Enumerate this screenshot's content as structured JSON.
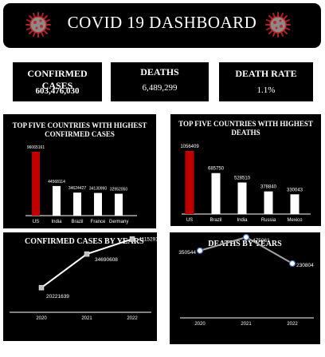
{
  "header": {
    "title": "COVID 19 DASHBOARD",
    "left_icon": "virus-icon",
    "right_icon": "virus-icon"
  },
  "kpis": {
    "confirmed": {
      "label": "CONFIRMED CASES",
      "value": "603,476,030"
    },
    "deaths": {
      "label": "DEATHS",
      "value": "6,489,299"
    },
    "death_rate": {
      "label": "DEATH RATE",
      "value": "1.1%"
    }
  },
  "colors": {
    "highlight_bar": "#c00000",
    "bar": "#ffffff",
    "line_confirmed": "#ffffff",
    "line_deaths": "#a6a6a6",
    "background": "#000000"
  },
  "chart_data": [
    {
      "type": "bar",
      "title": "TOP FIVE COUNTRIES WITH  HIGHEST CONFIRMED CASES",
      "categories": [
        "US",
        "India",
        "Brazil",
        "France",
        "Germany"
      ],
      "values": [
        96065161,
        44568114,
        34624427,
        34130990,
        32952050
      ],
      "labels": [
        "96065161",
        "44568114",
        "34624427",
        "34130990",
        "32952050"
      ],
      "ylim": [
        0,
        96065161
      ]
    },
    {
      "type": "bar",
      "title": "TOP FIVE COUNTRIES WITH HIGHEST DEATHS",
      "categories": [
        "US",
        "Brazil",
        "India",
        "Russia",
        "Mexico"
      ],
      "values": [
        1056409,
        685750,
        528510,
        378840,
        330043
      ],
      "labels": [
        "1056409",
        "685750",
        "528510",
        "378840",
        "330043"
      ],
      "ylim": [
        0,
        1056409
      ]
    },
    {
      "type": "line",
      "title": "CONFIRMED CASES BY YEARS",
      "categories": [
        "2020",
        "2021",
        "2022"
      ],
      "values": [
        20221639,
        34690608,
        41152914
      ],
      "labels": [
        "20221639",
        "34690608",
        "41152914"
      ],
      "ylim": [
        0,
        44000000
      ]
    },
    {
      "type": "line",
      "title": "DEATHS  BY  YEARS",
      "categories": [
        "2020",
        "2021",
        "2022"
      ],
      "values": [
        350544,
        475061,
        230804
      ],
      "labels": [
        "350544",
        "475061",
        "230804"
      ],
      "ylim": [
        0,
        520000
      ]
    }
  ]
}
